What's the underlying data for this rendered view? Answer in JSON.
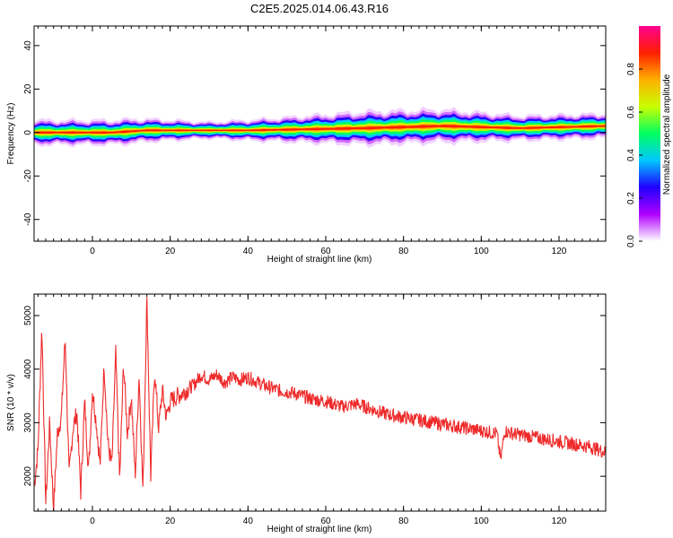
{
  "title": "C2E5.2025.014.06.43.R16",
  "chart_data": [
    {
      "type": "heatmap",
      "xlabel": "Height of straight line (km)",
      "ylabel": "Frequency (Hz)",
      "xlim": [
        -15,
        132
      ],
      "ylim": [
        -50,
        49
      ],
      "xticks": [
        0,
        20,
        40,
        60,
        80,
        100,
        120
      ],
      "yticks": [
        -40,
        -20,
        0,
        20,
        40
      ],
      "colorbar": {
        "label": "Normalized spectral amplitude",
        "range": [
          0,
          1
        ],
        "ticks": [
          0.0,
          0.2,
          0.4,
          0.6,
          0.8
        ],
        "colors": [
          "#ffffff",
          "#b000ff",
          "#2000ff",
          "#00c8ff",
          "#00ff60",
          "#c8ff00",
          "#ffb000",
          "#ff2000",
          "#ff0090"
        ]
      },
      "ridge": {
        "center_freq_hz": [
          {
            "x": -15,
            "y": 0
          },
          {
            "x": 5,
            "y": 0
          },
          {
            "x": 14,
            "y": 1
          },
          {
            "x": 40,
            "y": 1
          },
          {
            "x": 70,
            "y": 2
          },
          {
            "x": 90,
            "y": 3
          },
          {
            "x": 110,
            "y": 2
          },
          {
            "x": 132,
            "y": 3
          }
        ],
        "peak_amplitude": 1.0,
        "halfwidth_hz": [
          {
            "x": -15,
            "y": 3
          },
          {
            "x": 10,
            "y": 3
          },
          {
            "x": 30,
            "y": 2
          },
          {
            "x": 50,
            "y": 3
          },
          {
            "x": 70,
            "y": 4
          },
          {
            "x": 90,
            "y": 4
          },
          {
            "x": 110,
            "y": 3
          },
          {
            "x": 132,
            "y": 3
          }
        ]
      }
    },
    {
      "type": "line",
      "xlabel": "Height of straight line (km)",
      "ylabel": "SNR (10 * v/v)",
      "xlim": [
        -15,
        132
      ],
      "ylim": [
        1350,
        5400
      ],
      "xticks": [
        0,
        20,
        40,
        60,
        80,
        100,
        120
      ],
      "yticks": [
        2000,
        3000,
        4000,
        5000
      ],
      "series": [
        {
          "color": "#ee2a2a",
          "x": [
            -15,
            -14,
            -13,
            -12,
            -11,
            -10,
            -9,
            -8,
            -7,
            -6,
            -5,
            -4,
            -3,
            -2,
            -1,
            0,
            1,
            2,
            3,
            4,
            5,
            6,
            7,
            8,
            9,
            10,
            11,
            12,
            13,
            14,
            15,
            16,
            17,
            18,
            19,
            20,
            22,
            24,
            26,
            28,
            30,
            32,
            34,
            36,
            38,
            40,
            44,
            48,
            52,
            56,
            60,
            64,
            68,
            72,
            76,
            80,
            84,
            88,
            92,
            96,
            100,
            104,
            105,
            106,
            108,
            112,
            116,
            120,
            124,
            128,
            132
          ],
          "y": [
            1800,
            2500,
            4800,
            1500,
            3000,
            1400,
            2800,
            3100,
            4600,
            2000,
            2900,
            3200,
            1700,
            3400,
            2100,
            3600,
            3000,
            2200,
            4100,
            2600,
            2200,
            4300,
            1900,
            4100,
            2800,
            3500,
            2000,
            3900,
            1700,
            5350,
            2000,
            4000,
            2900,
            3600,
            3100,
            3400,
            3500,
            3600,
            3700,
            3900,
            3800,
            3900,
            3750,
            3850,
            3800,
            3850,
            3700,
            3600,
            3550,
            3450,
            3400,
            3300,
            3350,
            3250,
            3150,
            3100,
            3050,
            3000,
            2950,
            2900,
            2850,
            2800,
            2300,
            2850,
            2800,
            2750,
            2700,
            2650,
            2600,
            2550,
            2450
          ]
        }
      ]
    }
  ]
}
